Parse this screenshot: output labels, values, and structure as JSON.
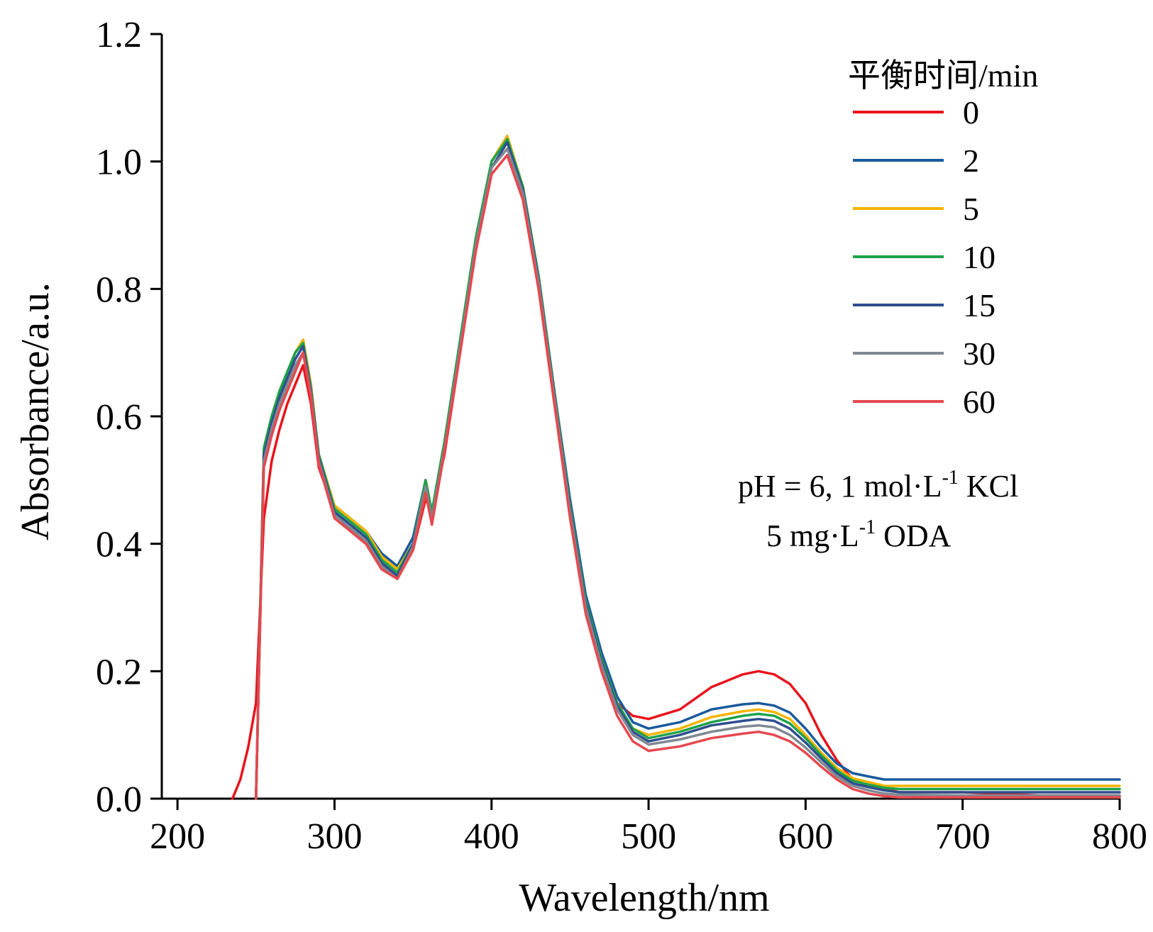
{
  "chart_data": {
    "type": "line",
    "title": "",
    "xlabel": "Wavelength/nm",
    "ylabel": "Absorbance/a.u.",
    "xlim": [
      190,
      800
    ],
    "ylim": [
      0,
      1.2
    ],
    "x_ticks": [
      "200",
      "300",
      "400",
      "500",
      "600",
      "700",
      "800"
    ],
    "y_ticks": [
      "0.0",
      "0.2",
      "0.4",
      "0.6",
      "0.8",
      "1.0",
      "1.2"
    ],
    "grid": false,
    "legend": {
      "title": "平衡时间/min",
      "position": "top-right"
    },
    "annotations": [
      {
        "text": "pH = 6, 1 mol·L",
        "sup": "-1",
        "tail": " KCl"
      },
      {
        "text": "5 mg·L",
        "sup": "-1",
        "tail": " ODA"
      }
    ],
    "x": [
      235,
      240,
      245,
      250,
      255,
      260,
      265,
      270,
      275,
      280,
      285,
      290,
      300,
      310,
      320,
      330,
      340,
      350,
      358,
      362,
      370,
      380,
      390,
      400,
      410,
      420,
      430,
      440,
      450,
      460,
      470,
      480,
      490,
      500,
      520,
      540,
      560,
      570,
      580,
      590,
      600,
      610,
      620,
      630,
      640,
      650,
      660,
      700,
      750,
      800
    ],
    "series": [
      {
        "name": "0",
        "color": "#e8141c",
        "values": [
          0.0,
          0.03,
          0.08,
          0.15,
          0.44,
          0.53,
          0.58,
          0.62,
          0.65,
          0.68,
          0.62,
          0.52,
          0.45,
          0.42,
          0.4,
          0.37,
          0.345,
          0.39,
          0.47,
          0.45,
          0.54,
          0.7,
          0.86,
          0.98,
          1.01,
          0.94,
          0.8,
          0.62,
          0.45,
          0.3,
          0.21,
          0.15,
          0.13,
          0.125,
          0.14,
          0.175,
          0.195,
          0.2,
          0.195,
          0.18,
          0.15,
          0.1,
          0.06,
          0.03,
          0.02,
          0.015,
          0.01,
          0.01,
          0.005,
          0.005
        ]
      },
      {
        "name": "2",
        "color": "#1a5a9c",
        "values": [
          null,
          null,
          null,
          0.0,
          0.55,
          0.6,
          0.64,
          0.67,
          0.7,
          0.72,
          0.65,
          0.54,
          0.46,
          0.44,
          0.42,
          0.385,
          0.365,
          0.41,
          0.5,
          0.45,
          0.56,
          0.72,
          0.88,
          1.0,
          1.04,
          0.96,
          0.82,
          0.64,
          0.47,
          0.32,
          0.23,
          0.16,
          0.12,
          0.11,
          0.12,
          0.14,
          0.148,
          0.15,
          0.146,
          0.135,
          0.11,
          0.08,
          0.055,
          0.04,
          0.035,
          0.03,
          0.03,
          0.03,
          0.03,
          0.03
        ]
      },
      {
        "name": "5",
        "color": "#f5b400",
        "values": [
          null,
          null,
          null,
          0.0,
          0.55,
          0.6,
          0.64,
          0.67,
          0.7,
          0.72,
          0.65,
          0.54,
          0.46,
          0.44,
          0.42,
          0.38,
          0.36,
          0.4,
          0.5,
          0.45,
          0.56,
          0.72,
          0.88,
          1.0,
          1.04,
          0.96,
          0.82,
          0.64,
          0.46,
          0.31,
          0.22,
          0.15,
          0.11,
          0.1,
          0.11,
          0.128,
          0.137,
          0.14,
          0.136,
          0.125,
          0.1,
          0.072,
          0.048,
          0.032,
          0.026,
          0.02,
          0.02,
          0.02,
          0.02,
          0.02
        ]
      },
      {
        "name": "10",
        "color": "#1ea24b",
        "values": [
          null,
          null,
          null,
          0.0,
          0.55,
          0.6,
          0.64,
          0.67,
          0.7,
          0.715,
          0.645,
          0.54,
          0.455,
          0.435,
          0.415,
          0.375,
          0.355,
          0.4,
          0.5,
          0.45,
          0.56,
          0.72,
          0.88,
          1.0,
          1.035,
          0.96,
          0.82,
          0.64,
          0.46,
          0.31,
          0.22,
          0.15,
          0.11,
          0.095,
          0.105,
          0.12,
          0.13,
          0.133,
          0.13,
          0.118,
          0.095,
          0.068,
          0.044,
          0.028,
          0.022,
          0.017,
          0.015,
          0.015,
          0.015,
          0.015
        ]
      },
      {
        "name": "15",
        "color": "#2e4e8e",
        "values": [
          null,
          null,
          null,
          0.0,
          0.54,
          0.59,
          0.63,
          0.66,
          0.69,
          0.71,
          0.64,
          0.535,
          0.45,
          0.43,
          0.41,
          0.37,
          0.35,
          0.4,
          0.49,
          0.44,
          0.55,
          0.71,
          0.87,
          0.99,
          1.03,
          0.955,
          0.815,
          0.635,
          0.455,
          0.305,
          0.215,
          0.145,
          0.105,
          0.09,
          0.1,
          0.115,
          0.122,
          0.125,
          0.122,
          0.11,
          0.088,
          0.063,
          0.04,
          0.024,
          0.018,
          0.013,
          0.01,
          0.01,
          0.01,
          0.01
        ]
      },
      {
        "name": "30",
        "color": "#808890",
        "values": [
          null,
          null,
          null,
          0.0,
          0.53,
          0.58,
          0.62,
          0.65,
          0.68,
          0.7,
          0.635,
          0.53,
          0.445,
          0.425,
          0.405,
          0.365,
          0.345,
          0.395,
          0.49,
          0.44,
          0.55,
          0.71,
          0.87,
          0.99,
          1.02,
          0.95,
          0.81,
          0.63,
          0.45,
          0.3,
          0.21,
          0.14,
          0.1,
          0.085,
          0.093,
          0.105,
          0.113,
          0.115,
          0.112,
          0.1,
          0.08,
          0.057,
          0.035,
          0.02,
          0.013,
          0.008,
          0.006,
          0.005,
          0.005,
          0.005
        ]
      },
      {
        "name": "60",
        "color": "#e5484f",
        "values": [
          null,
          null,
          null,
          0.0,
          0.52,
          0.57,
          0.61,
          0.64,
          0.67,
          0.7,
          0.63,
          0.525,
          0.44,
          0.42,
          0.4,
          0.36,
          0.345,
          0.39,
          0.48,
          0.43,
          0.545,
          0.7,
          0.86,
          0.98,
          1.01,
          0.94,
          0.8,
          0.62,
          0.44,
          0.29,
          0.2,
          0.13,
          0.09,
          0.075,
          0.082,
          0.095,
          0.102,
          0.105,
          0.1,
          0.09,
          0.072,
          0.05,
          0.03,
          0.015,
          0.008,
          0.004,
          0.002,
          0.002,
          0.002,
          0.002
        ]
      }
    ]
  }
}
